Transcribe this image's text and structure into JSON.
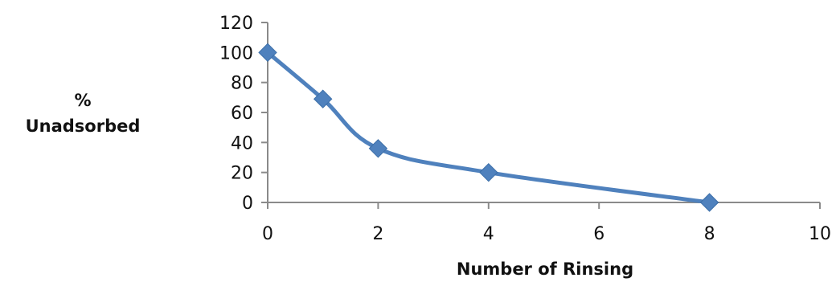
{
  "chart_data": {
    "type": "line",
    "title": "",
    "xlabel": "Number of Rinsing",
    "ylabel_line1": "%",
    "ylabel_line2": "Unadsorbed",
    "xlim": [
      0,
      10
    ],
    "ylim": [
      0,
      120
    ],
    "xticks": [
      0,
      2,
      4,
      6,
      8,
      10
    ],
    "yticks": [
      0,
      20,
      40,
      60,
      80,
      100,
      120
    ],
    "grid": false,
    "legend": "none",
    "series": [
      {
        "x": [
          0,
          1,
          2,
          4,
          8
        ],
        "y": [
          100,
          69,
          36,
          20,
          0
        ],
        "color": "#4f81bd",
        "marker": "diamond"
      }
    ]
  }
}
